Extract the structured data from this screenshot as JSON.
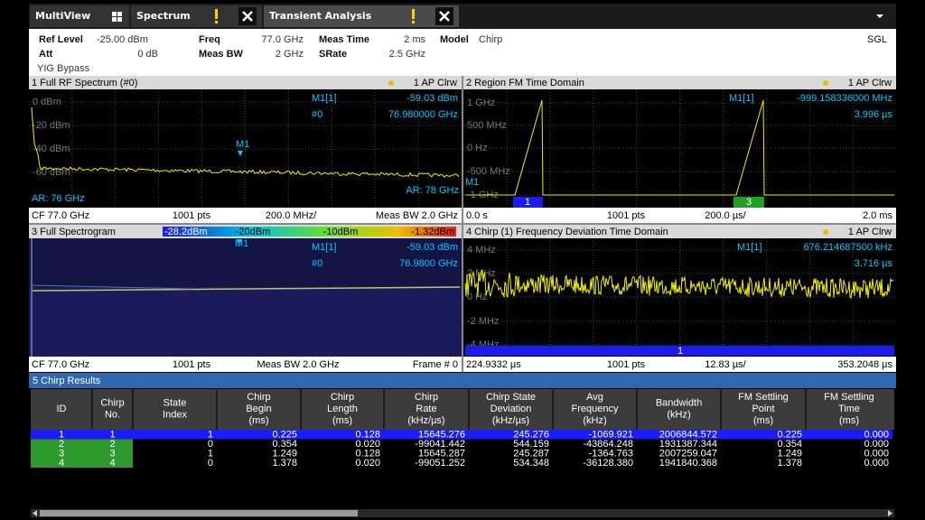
{
  "tabs": [
    "MultiView",
    "Spectrum",
    "Transient Analysis"
  ],
  "settings": [
    {
      "label": "Ref Level",
      "value": "-25.00 dBm"
    },
    {
      "label": "Att",
      "value": "0 dB"
    },
    {
      "label": "Freq",
      "value": "77.0 GHz"
    },
    {
      "label": "Meas BW",
      "value": "2 GHz"
    },
    {
      "label": "Meas Time",
      "value": "2 ms"
    },
    {
      "label": "SRate",
      "value": "2.5 GHz"
    },
    {
      "label": "Model",
      "value": "Chirp"
    }
  ],
  "note": "YIG Bypass",
  "mode": "SGL",
  "windows": [
    {
      "title": "1 Full RF Spectrum (#0)",
      "trace": "1 AP Clrw",
      "marker": [
        "M1[1]",
        "-59.03 dBm",
        "#0",
        "76.980000 GHz"
      ],
      "yticks": [
        "0 dBm",
        "-20 dBm",
        "-40 dBm",
        "-60 dBm"
      ],
      "labels": [
        "M1",
        "AR: 76 GHz",
        "AR: 78 GHz"
      ],
      "footer": [
        "CF 77.0 GHz",
        "1001 pts",
        "200.0 MHz/",
        "Meas BW 2.0 GHz"
      ]
    },
    {
      "title": "2 Region FM Time Domain",
      "trace": "1 AP Clrw",
      "marker": [
        "M1[1]",
        "-999.158336000 MHz",
        "3.996 µs"
      ],
      "yticks": [
        "1 GHz",
        "500 MHz",
        "0 Hz",
        "-500 MHz",
        "-1 GHz"
      ],
      "labels": [
        "M1",
        "1",
        "3"
      ],
      "footer": [
        "0.0 s",
        "1001 pts",
        "200.0 µs/",
        "2.0 ms"
      ]
    },
    {
      "title": "3 Full Spectrogram",
      "scale": [
        "-28.2dBm",
        "-20dBm",
        "-10dBm",
        "-1.32dBm"
      ],
      "marker": [
        "M1[1]",
        "-59.03 dBm",
        "#0",
        "76.9800 GHz"
      ],
      "labels": [
        "M1"
      ],
      "footer": [
        "CF 77.0 GHz",
        "1001 pts",
        "Meas BW 2.0 GHz",
        "Frame # 0"
      ]
    },
    {
      "title": "4 Chirp (1) Frequency Deviation Time Domain",
      "trace": "1 AP Clrw",
      "marker": [
        "M1[1]",
        "676.214687500 kHz",
        "3.716 µs"
      ],
      "yticks": [
        "4 MHz",
        "2 MHz",
        "0 Hz",
        "-2 MHz",
        "-4 MHz"
      ],
      "labels": [
        "1"
      ],
      "footer": [
        "224.9332 µs",
        "1001 pts",
        "12.83 µs/",
        "353.2048 µs"
      ]
    }
  ],
  "results": {
    "title": "5 Chirp Results",
    "columns": [
      [
        "ID"
      ],
      [
        "Chirp",
        "No."
      ],
      [
        "State",
        "Index"
      ],
      [
        "Chirp",
        "Begin",
        "(ms)"
      ],
      [
        "Chirp",
        "Length",
        "(ms)"
      ],
      [
        "Chirp",
        "Rate",
        "(kHz/µs)"
      ],
      [
        "Chirp State",
        "Deviation",
        "(kHz/µs)"
      ],
      [
        "Avg",
        "Frequency",
        "(kHz)"
      ],
      [
        "Bandwidth",
        "(kHz)"
      ],
      [
        "FM Settling",
        "Point",
        "(ms)"
      ],
      [
        "FM Settling",
        "Time",
        "(ms)"
      ]
    ],
    "rows": [
      [
        "1",
        "1",
        "1",
        "0.225",
        "0.128",
        "15645.276",
        "245.276",
        "-1069.921",
        "2006844.572",
        "0.225",
        "0.000"
      ],
      [
        "2",
        "2",
        "0",
        "0.354",
        "0.020",
        "-99041.442",
        "544.159",
        "-43864.248",
        "1931387.344",
        "0.354",
        "0.000"
      ],
      [
        "3",
        "3",
        "1",
        "1.249",
        "0.128",
        "15645.287",
        "245.287",
        "-1364.763",
        "2007259.047",
        "1.249",
        "0.000"
      ],
      [
        "4",
        "4",
        "0",
        "1.378",
        "0.020",
        "-99051.252",
        "534.348",
        "-36128.380",
        "1941840.368",
        "1.378",
        "0.000"
      ]
    ]
  }
}
